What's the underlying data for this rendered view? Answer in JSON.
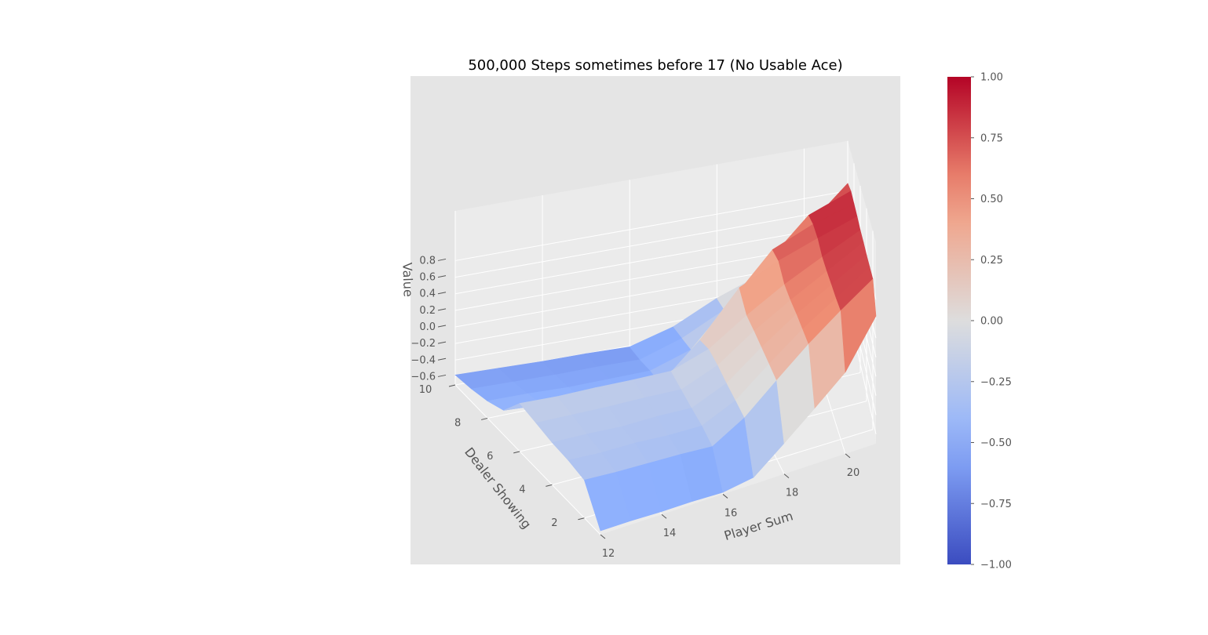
{
  "chart_data": {
    "type": "surface3d",
    "title": "500,000 Steps sometimes before 17 (No Usable Ace)",
    "xlabel": "Player Sum",
    "ylabel": "Dealer Showing",
    "zlabel": "Value",
    "x": [
      12,
      13,
      14,
      15,
      16,
      17,
      18,
      19,
      20,
      21
    ],
    "y": [
      1,
      2,
      3,
      4,
      5,
      6,
      7,
      8,
      9,
      10
    ],
    "x_ticks": [
      12,
      14,
      16,
      18,
      20
    ],
    "y_ticks": [
      2,
      4,
      6,
      8,
      10
    ],
    "z_ticks": [
      -0.6,
      -0.4,
      -0.2,
      0.0,
      0.2,
      0.4,
      0.6,
      0.8
    ],
    "z_tick_labels": [
      "−0.6",
      "−0.4",
      "−0.2",
      "0.0",
      "0.2",
      "0.4",
      "0.6",
      "0.8"
    ],
    "xlim": [
      12,
      21
    ],
    "ylim": [
      1,
      10
    ],
    "zlim": [
      -0.7,
      0.95
    ],
    "colormap": "coolwarm",
    "colorbar": {
      "range": [
        -1.0,
        1.0
      ],
      "ticks": [
        1.0,
        0.75,
        0.5,
        0.25,
        0.0,
        -0.25,
        -0.5,
        -0.75,
        -1.0
      ],
      "tick_labels": [
        "1.00",
        "0.75",
        "0.50",
        "0.25",
        "0.00",
        "−0.25",
        "−0.50",
        "−0.75",
        "−1.00"
      ]
    },
    "z": [
      [
        -0.66,
        -0.66,
        -0.67,
        -0.67,
        -0.68,
        -0.63,
        -0.38,
        -0.12,
        0.15,
        0.63
      ],
      [
        -0.3,
        -0.32,
        -0.33,
        -0.34,
        -0.36,
        -0.16,
        0.13,
        0.41,
        0.66,
        0.89
      ],
      [
        -0.26,
        -0.28,
        -0.28,
        -0.3,
        -0.3,
        -0.13,
        0.16,
        0.43,
        0.66,
        0.89
      ],
      [
        -0.24,
        -0.25,
        -0.27,
        -0.26,
        -0.27,
        -0.1,
        0.19,
        0.45,
        0.67,
        0.89
      ],
      [
        -0.2,
        -0.21,
        -0.22,
        -0.22,
        -0.23,
        -0.06,
        0.22,
        0.46,
        0.68,
        0.9
      ],
      [
        -0.16,
        -0.18,
        -0.18,
        -0.19,
        -0.19,
        -0.04,
        0.24,
        0.49,
        0.7,
        0.9
      ],
      [
        -0.42,
        -0.45,
        -0.48,
        -0.48,
        -0.5,
        -0.1,
        0.4,
        0.61,
        0.77,
        0.92
      ],
      [
        -0.5,
        -0.51,
        -0.53,
        -0.53,
        -0.53,
        -0.38,
        0.1,
        0.59,
        0.79,
        0.93
      ],
      [
        -0.55,
        -0.56,
        -0.57,
        -0.57,
        -0.58,
        -0.42,
        -0.18,
        0.28,
        0.75,
        0.94
      ],
      [
        -0.58,
        -0.59,
        -0.6,
        -0.6,
        -0.61,
        -0.46,
        -0.21,
        -0.02,
        0.42,
        0.89
      ]
    ]
  }
}
